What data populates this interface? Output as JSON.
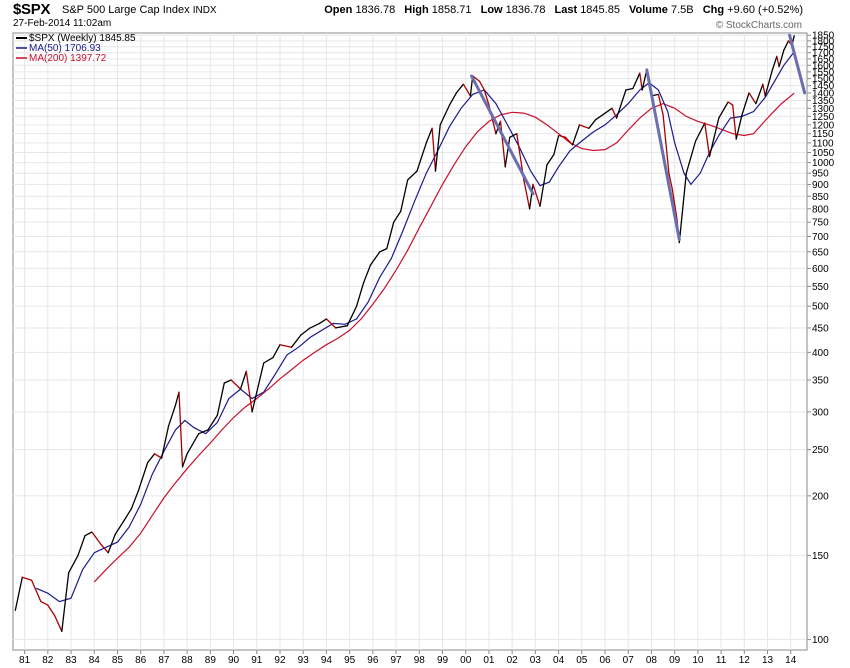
{
  "header": {
    "symbol": "$SPX",
    "name": "S&P 500 Large Cap Index",
    "exchange": "INDX",
    "date": "27-Feb-2014 11:02am",
    "open_label": "Open",
    "open": "1836.78",
    "high_label": "High",
    "high": "1858.71",
    "low_label": "Low",
    "low": "1836.78",
    "last_label": "Last",
    "last": "1845.85",
    "volume_label": "Volume",
    "volume": "7.5B",
    "chg_label": "Chg",
    "chg": "+9.60 (+0.52%)",
    "brand": "© StockCharts.com"
  },
  "legend": {
    "price": "$SPX (Weekly) 1845.85",
    "ma50": "MA(50) 1706.93",
    "ma200": "MA(200) 1397.72"
  },
  "colors": {
    "price": "#000000",
    "down": "#aa0000",
    "ma50": "#1a1a8c",
    "ma200": "#c8102e",
    "trend": "#6b6fb0",
    "grid": "#e6e6e6"
  },
  "chart_data": {
    "type": "line",
    "title": "$SPX S&P 500 Large Cap Index",
    "yscale": "log",
    "ylim": [
      95,
      1870
    ],
    "xlim": [
      1980.5,
      2014.7
    ],
    "yticks": [
      100,
      150,
      200,
      250,
      300,
      350,
      400,
      450,
      500,
      550,
      600,
      650,
      700,
      750,
      800,
      850,
      900,
      950,
      1000,
      1050,
      1100,
      1150,
      1200,
      1250,
      1300,
      1350,
      1400,
      1450,
      1500,
      1550,
      1600,
      1650,
      1700,
      1750,
      1800,
      1850
    ],
    "ytick_labels": [
      "100",
      "150",
      "200",
      "250",
      "300",
      "350",
      "400",
      "450",
      "500",
      "550",
      "600",
      "650",
      "700",
      "750",
      "800",
      "850",
      "900",
      "950",
      "1000",
      "1050",
      "1100",
      "1150",
      "1200",
      "1250",
      "1300",
      "1350",
      "1400",
      "1450",
      "1500",
      "1550",
      "1600",
      "1650",
      "1700",
      "1750",
      "1800",
      "1850"
    ],
    "xticks": [
      1981,
      1982,
      1983,
      1984,
      1985,
      1986,
      1987,
      1988,
      1989,
      1990,
      1991,
      1992,
      1993,
      1994,
      1995,
      1996,
      1997,
      1998,
      1999,
      2000,
      2001,
      2002,
      2003,
      2004,
      2005,
      2006,
      2007,
      2008,
      2009,
      2010,
      2011,
      2012,
      2013,
      2014
    ],
    "xtick_labels": [
      "81",
      "82",
      "83",
      "84",
      "85",
      "86",
      "87",
      "88",
      "89",
      "90",
      "91",
      "92",
      "93",
      "94",
      "95",
      "96",
      "97",
      "98",
      "99",
      "00",
      "01",
      "02",
      "03",
      "04",
      "05",
      "06",
      "07",
      "08",
      "09",
      "10",
      "11",
      "12",
      "13",
      "14"
    ],
    "series": [
      {
        "name": "$SPX (Weekly)",
        "points": [
          [
            1980.6,
            115
          ],
          [
            1980.9,
            135
          ],
          [
            1981.3,
            133
          ],
          [
            1981.7,
            120
          ],
          [
            1982.0,
            118
          ],
          [
            1982.3,
            112
          ],
          [
            1982.6,
            104
          ],
          [
            1982.9,
            138
          ],
          [
            1983.3,
            150
          ],
          [
            1983.6,
            165
          ],
          [
            1983.9,
            168
          ],
          [
            1984.3,
            158
          ],
          [
            1984.6,
            152
          ],
          [
            1984.9,
            166
          ],
          [
            1985.3,
            178
          ],
          [
            1985.6,
            188
          ],
          [
            1985.9,
            205
          ],
          [
            1986.3,
            235
          ],
          [
            1986.6,
            245
          ],
          [
            1986.9,
            240
          ],
          [
            1987.2,
            280
          ],
          [
            1987.5,
            310
          ],
          [
            1987.65,
            330
          ],
          [
            1987.8,
            230
          ],
          [
            1988.0,
            245
          ],
          [
            1988.5,
            270
          ],
          [
            1988.9,
            275
          ],
          [
            1989.3,
            295
          ],
          [
            1989.6,
            345
          ],
          [
            1989.9,
            350
          ],
          [
            1990.3,
            335
          ],
          [
            1990.55,
            365
          ],
          [
            1990.8,
            300
          ],
          [
            1991.0,
            330
          ],
          [
            1991.3,
            380
          ],
          [
            1991.7,
            390
          ],
          [
            1992.0,
            415
          ],
          [
            1992.5,
            410
          ],
          [
            1992.9,
            435
          ],
          [
            1993.3,
            450
          ],
          [
            1993.7,
            460
          ],
          [
            1994.0,
            470
          ],
          [
            1994.4,
            450
          ],
          [
            1994.9,
            455
          ],
          [
            1995.3,
            500
          ],
          [
            1995.6,
            560
          ],
          [
            1995.9,
            610
          ],
          [
            1996.3,
            650
          ],
          [
            1996.6,
            660
          ],
          [
            1996.9,
            750
          ],
          [
            1997.2,
            790
          ],
          [
            1997.5,
            920
          ],
          [
            1997.9,
            960
          ],
          [
            1998.3,
            1100
          ],
          [
            1998.55,
            1180
          ],
          [
            1998.7,
            960
          ],
          [
            1998.9,
            1200
          ],
          [
            1999.3,
            1320
          ],
          [
            1999.6,
            1400
          ],
          [
            1999.9,
            1460
          ],
          [
            2000.2,
            1380
          ],
          [
            2000.3,
            1520
          ],
          [
            2000.6,
            1480
          ],
          [
            2000.8,
            1420
          ],
          [
            2001.0,
            1320
          ],
          [
            2001.3,
            1150
          ],
          [
            2001.5,
            1220
          ],
          [
            2001.7,
            980
          ],
          [
            2001.9,
            1130
          ],
          [
            2002.2,
            1150
          ],
          [
            2002.5,
            920
          ],
          [
            2002.75,
            800
          ],
          [
            2002.9,
            900
          ],
          [
            2003.2,
            810
          ],
          [
            2003.5,
            990
          ],
          [
            2003.8,
            1040
          ],
          [
            2004.0,
            1140
          ],
          [
            2004.3,
            1130
          ],
          [
            2004.6,
            1090
          ],
          [
            2004.9,
            1200
          ],
          [
            2005.3,
            1180
          ],
          [
            2005.6,
            1230
          ],
          [
            2005.9,
            1260
          ],
          [
            2006.3,
            1300
          ],
          [
            2006.5,
            1240
          ],
          [
            2006.9,
            1420
          ],
          [
            2007.2,
            1430
          ],
          [
            2007.5,
            1540
          ],
          [
            2007.6,
            1420
          ],
          [
            2007.8,
            1565
          ],
          [
            2008.0,
            1380
          ],
          [
            2008.3,
            1390
          ],
          [
            2008.5,
            1260
          ],
          [
            2008.75,
            950
          ],
          [
            2008.9,
            880
          ],
          [
            2009.1,
            760
          ],
          [
            2009.2,
            680
          ],
          [
            2009.5,
            950
          ],
          [
            2009.9,
            1110
          ],
          [
            2010.3,
            1210
          ],
          [
            2010.5,
            1030
          ],
          [
            2010.9,
            1240
          ],
          [
            2011.3,
            1340
          ],
          [
            2011.5,
            1320
          ],
          [
            2011.65,
            1120
          ],
          [
            2011.9,
            1260
          ],
          [
            2012.2,
            1400
          ],
          [
            2012.5,
            1330
          ],
          [
            2012.8,
            1460
          ],
          [
            2012.9,
            1380
          ],
          [
            2013.2,
            1560
          ],
          [
            2013.4,
            1670
          ],
          [
            2013.5,
            1590
          ],
          [
            2013.7,
            1720
          ],
          [
            2013.9,
            1800
          ],
          [
            2014.05,
            1760
          ],
          [
            2014.15,
            1845
          ]
        ]
      },
      {
        "name": "MA(50)",
        "points": [
          [
            1981.5,
            128
          ],
          [
            1982.0,
            125
          ],
          [
            1982.5,
            120
          ],
          [
            1983.0,
            122
          ],
          [
            1983.5,
            140
          ],
          [
            1984.0,
            152
          ],
          [
            1984.5,
            156
          ],
          [
            1985.0,
            160
          ],
          [
            1985.5,
            172
          ],
          [
            1986.0,
            192
          ],
          [
            1986.5,
            222
          ],
          [
            1987.0,
            248
          ],
          [
            1987.5,
            275
          ],
          [
            1987.9,
            288
          ],
          [
            1988.3,
            278
          ],
          [
            1988.8,
            270
          ],
          [
            1989.3,
            285
          ],
          [
            1989.8,
            320
          ],
          [
            1990.3,
            335
          ],
          [
            1990.8,
            320
          ],
          [
            1991.3,
            330
          ],
          [
            1991.8,
            360
          ],
          [
            1992.3,
            395
          ],
          [
            1992.8,
            410
          ],
          [
            1993.3,
            430
          ],
          [
            1993.8,
            445
          ],
          [
            1994.3,
            460
          ],
          [
            1994.8,
            458
          ],
          [
            1995.3,
            470
          ],
          [
            1995.8,
            510
          ],
          [
            1996.3,
            575
          ],
          [
            1996.8,
            630
          ],
          [
            1997.3,
            720
          ],
          [
            1997.8,
            830
          ],
          [
            1998.3,
            950
          ],
          [
            1998.8,
            1060
          ],
          [
            1999.3,
            1190
          ],
          [
            1999.8,
            1300
          ],
          [
            2000.3,
            1390
          ],
          [
            2000.8,
            1420
          ],
          [
            2001.3,
            1330
          ],
          [
            2001.8,
            1200
          ],
          [
            2002.3,
            1080
          ],
          [
            2002.8,
            960
          ],
          [
            2003.2,
            895
          ],
          [
            2003.6,
            910
          ],
          [
            2004.0,
            980
          ],
          [
            2004.5,
            1060
          ],
          [
            2005.0,
            1110
          ],
          [
            2005.5,
            1160
          ],
          [
            2006.0,
            1200
          ],
          [
            2006.5,
            1260
          ],
          [
            2007.0,
            1330
          ],
          [
            2007.5,
            1420
          ],
          [
            2007.9,
            1470
          ],
          [
            2008.3,
            1420
          ],
          [
            2008.7,
            1280
          ],
          [
            2009.0,
            1100
          ],
          [
            2009.4,
            950
          ],
          [
            2009.7,
            900
          ],
          [
            2010.1,
            950
          ],
          [
            2010.5,
            1050
          ],
          [
            2010.9,
            1140
          ],
          [
            2011.4,
            1240
          ],
          [
            2011.9,
            1250
          ],
          [
            2012.4,
            1280
          ],
          [
            2012.9,
            1370
          ],
          [
            2013.3,
            1480
          ],
          [
            2013.7,
            1600
          ],
          [
            2014.15,
            1707
          ]
        ]
      },
      {
        "name": "MA(200)",
        "points": [
          [
            1984.0,
            132
          ],
          [
            1984.5,
            140
          ],
          [
            1985.0,
            148
          ],
          [
            1985.5,
            156
          ],
          [
            1986.0,
            167
          ],
          [
            1986.5,
            182
          ],
          [
            1987.0,
            198
          ],
          [
            1987.5,
            213
          ],
          [
            1988.0,
            228
          ],
          [
            1988.5,
            243
          ],
          [
            1989.0,
            258
          ],
          [
            1989.5,
            275
          ],
          [
            1990.0,
            292
          ],
          [
            1990.5,
            307
          ],
          [
            1991.0,
            320
          ],
          [
            1991.5,
            335
          ],
          [
            1992.0,
            352
          ],
          [
            1992.5,
            368
          ],
          [
            1993.0,
            385
          ],
          [
            1993.5,
            400
          ],
          [
            1994.0,
            415
          ],
          [
            1994.5,
            428
          ],
          [
            1995.0,
            445
          ],
          [
            1995.5,
            470
          ],
          [
            1996.0,
            505
          ],
          [
            1996.5,
            545
          ],
          [
            1997.0,
            595
          ],
          [
            1997.5,
            655
          ],
          [
            1998.0,
            730
          ],
          [
            1998.5,
            810
          ],
          [
            1999.0,
            900
          ],
          [
            1999.5,
            990
          ],
          [
            2000.0,
            1080
          ],
          [
            2000.5,
            1160
          ],
          [
            2001.0,
            1220
          ],
          [
            2001.5,
            1260
          ],
          [
            2002.0,
            1275
          ],
          [
            2002.5,
            1270
          ],
          [
            2003.0,
            1245
          ],
          [
            2003.5,
            1200
          ],
          [
            2004.0,
            1150
          ],
          [
            2004.5,
            1100
          ],
          [
            2005.0,
            1070
          ],
          [
            2005.5,
            1060
          ],
          [
            2006.0,
            1065
          ],
          [
            2006.5,
            1100
          ],
          [
            2007.0,
            1170
          ],
          [
            2007.5,
            1240
          ],
          [
            2008.0,
            1300
          ],
          [
            2008.5,
            1330
          ],
          [
            2009.0,
            1300
          ],
          [
            2009.5,
            1250
          ],
          [
            2010.0,
            1220
          ],
          [
            2010.5,
            1200
          ],
          [
            2011.0,
            1175
          ],
          [
            2011.5,
            1150
          ],
          [
            2012.0,
            1140
          ],
          [
            2012.4,
            1150
          ],
          [
            2012.8,
            1210
          ],
          [
            2013.2,
            1270
          ],
          [
            2013.6,
            1330
          ],
          [
            2014.15,
            1398
          ]
        ]
      }
    ],
    "trendlines": [
      [
        [
          2000.25,
          1520
        ],
        [
          2002.9,
          860
        ]
      ],
      [
        [
          2007.8,
          1565
        ],
        [
          2009.2,
          690
        ]
      ],
      [
        [
          2013.95,
          1850
        ],
        [
          2014.6,
          1400
        ]
      ]
    ]
  }
}
